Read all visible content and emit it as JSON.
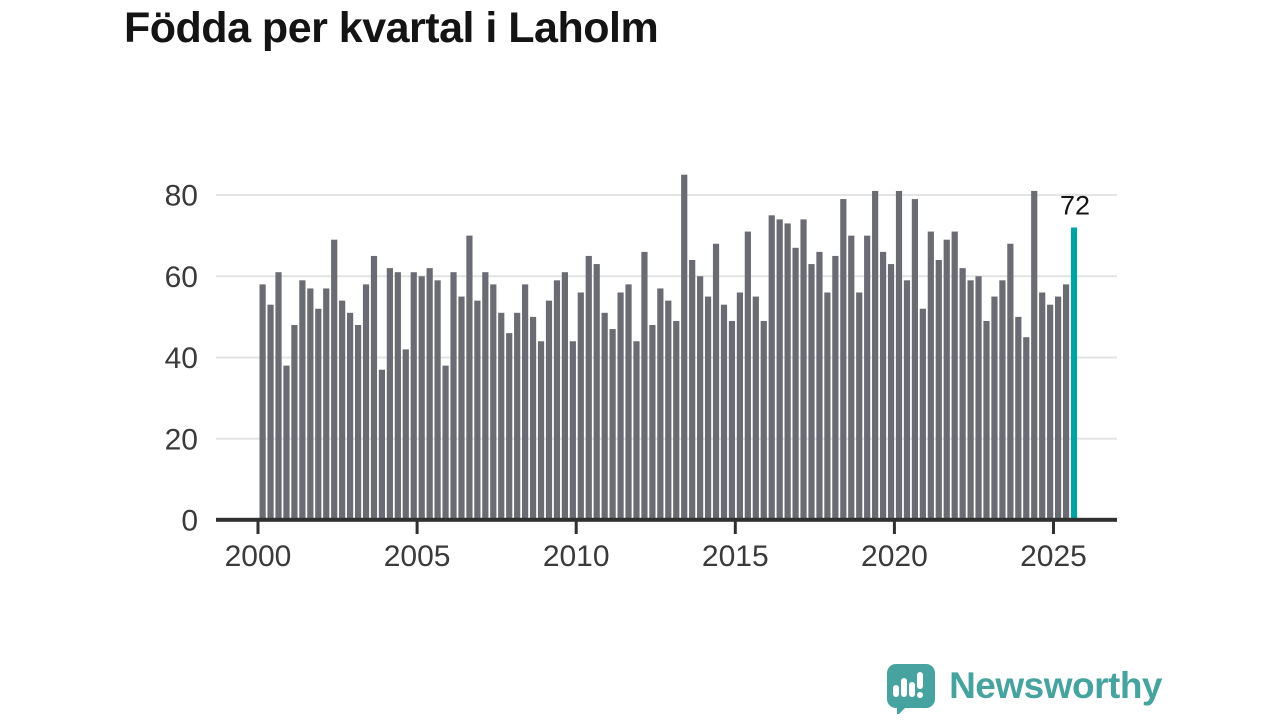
{
  "title": "Födda per kvartal i Laholm",
  "chart_data": {
    "type": "bar",
    "title": "Födda per kvartal i Laholm",
    "x_start": "2000 Q1",
    "x_end": "2025 Q3",
    "x_interval": "quarter",
    "x_tick_labels": [
      "2000",
      "2005",
      "2010",
      "2015",
      "2020",
      "2025"
    ],
    "y_tick_values": [
      0,
      20,
      40,
      60,
      80
    ],
    "ylim": [
      0,
      88
    ],
    "grid": "horizontal",
    "legend_position": "none",
    "series": [
      {
        "name": "Födda per kvartal",
        "values": [
          58,
          53,
          61,
          38,
          48,
          59,
          57,
          52,
          57,
          69,
          54,
          51,
          48,
          58,
          65,
          37,
          62,
          61,
          42,
          61,
          60,
          62,
          59,
          38,
          61,
          55,
          70,
          54,
          61,
          58,
          51,
          46,
          51,
          58,
          50,
          44,
          54,
          59,
          61,
          44,
          56,
          65,
          63,
          51,
          47,
          56,
          58,
          44,
          66,
          48,
          57,
          54,
          49,
          85,
          64,
          60,
          55,
          68,
          53,
          49,
          56,
          71,
          55,
          49,
          75,
          74,
          73,
          67,
          74,
          63,
          66,
          56,
          65,
          79,
          70,
          56,
          70,
          81,
          66,
          63,
          81,
          59,
          79,
          52,
          71,
          64,
          69,
          71,
          62,
          59,
          60,
          49,
          55,
          59,
          68,
          50,
          45,
          81,
          56,
          53,
          55,
          58,
          72
        ]
      }
    ],
    "highlight_last_bar": true,
    "annotation": {
      "text": "72",
      "target": "2025 Q3",
      "value": 72
    },
    "colors": {
      "bar": "#6b6b73",
      "highlight": "#00a3a3",
      "grid": "#e4e4e4",
      "axis": "#303030",
      "tick_label": "#3a3a3a",
      "annotation": "#141414"
    }
  },
  "footer": {
    "brand": "Newsworthy",
    "brand_color": "#47a39f"
  }
}
